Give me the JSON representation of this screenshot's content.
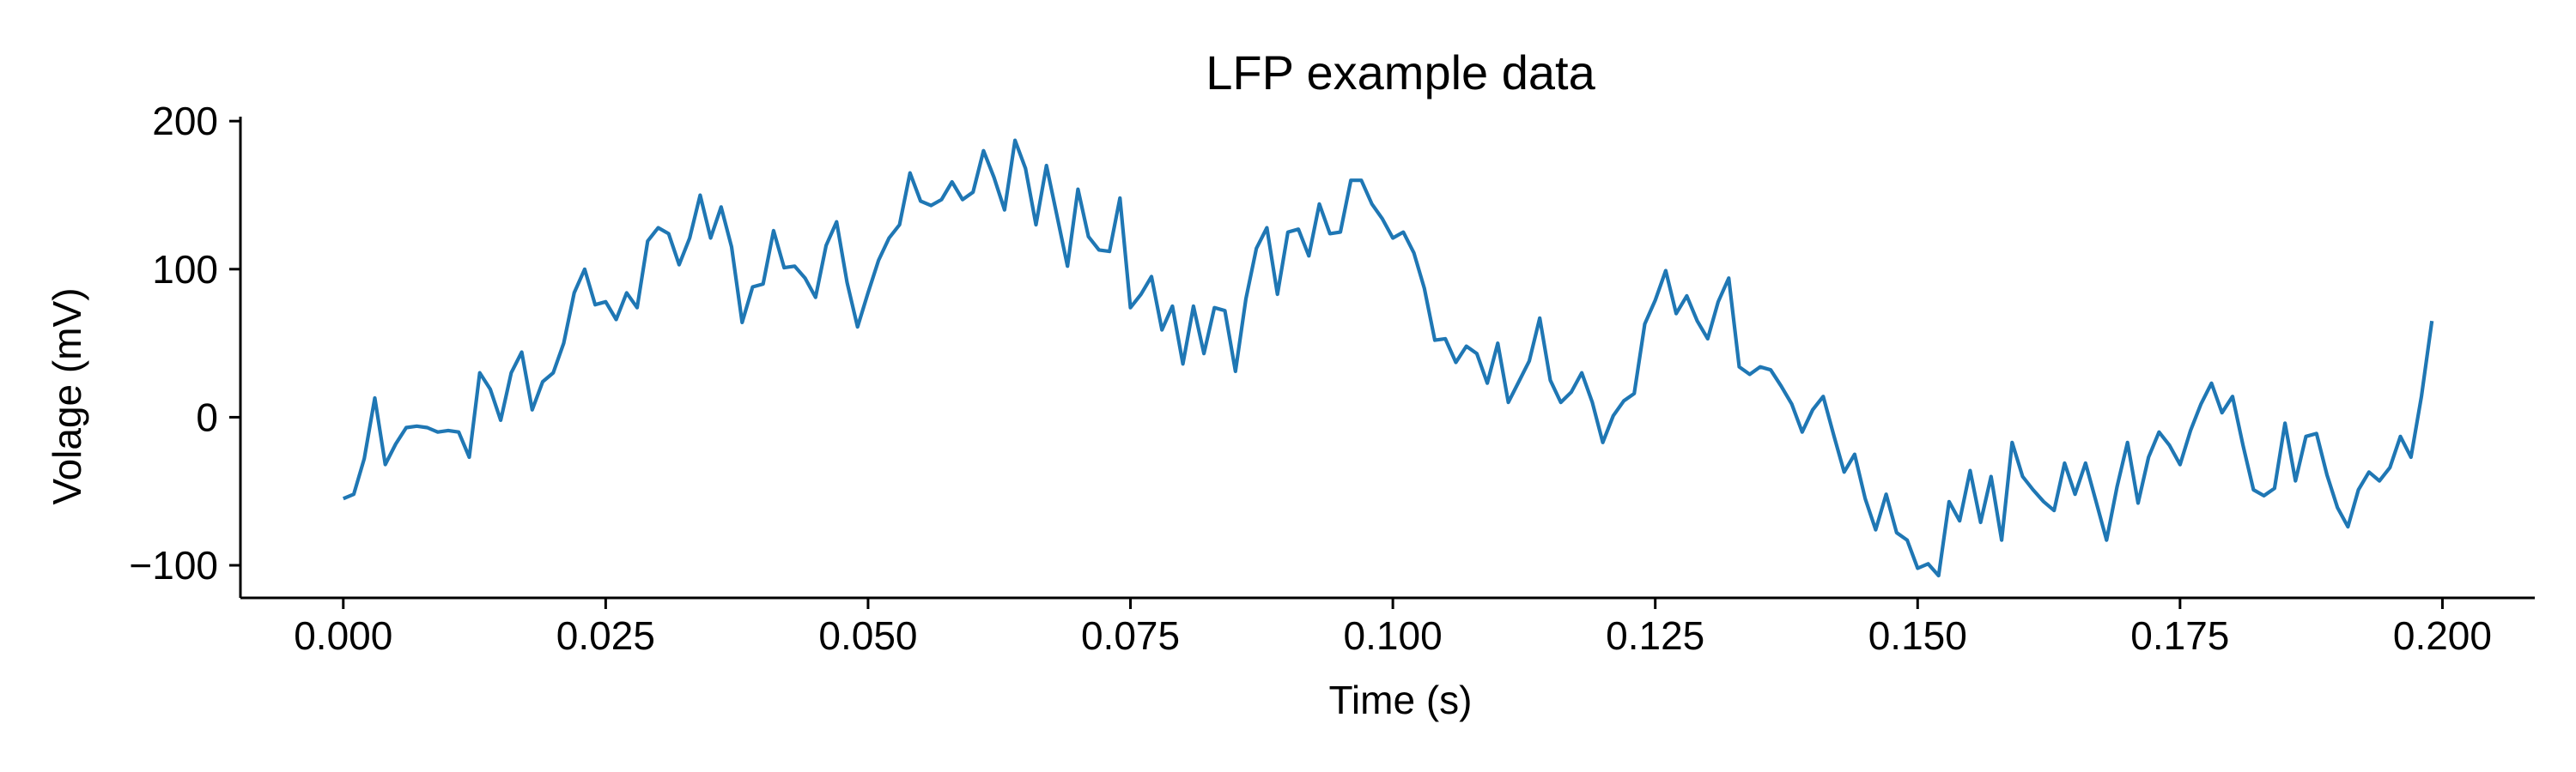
{
  "chart_data": {
    "type": "line",
    "title": "LFP example data",
    "xlabel": "Time (s)",
    "ylabel": "Volage (mV)",
    "xlim": [
      -0.0098,
      0.2088
    ],
    "ylim": [
      -122,
      203
    ],
    "xticks": [
      0.0,
      0.025,
      0.05,
      0.075,
      0.1,
      0.125,
      0.15,
      0.175,
      0.2
    ],
    "xtick_labels": [
      "0.000",
      "0.025",
      "0.050",
      "0.075",
      "0.100",
      "0.125",
      "0.150",
      "0.175",
      "0.200"
    ],
    "yticks": [
      -100,
      0,
      100,
      200
    ],
    "ytick_labels": [
      "−100",
      "0",
      "100",
      "200"
    ],
    "grid": false,
    "series": [
      {
        "color": "#1f77b4",
        "x_start": 0.0,
        "x_step": 0.001,
        "values": [
          -55,
          -52,
          -28,
          13,
          -32,
          -18,
          -7,
          -6,
          -7,
          -10,
          -9,
          -10,
          -27,
          30,
          19,
          -2,
          30,
          44,
          5,
          24,
          30,
          50,
          84,
          100,
          76,
          78,
          66,
          84,
          74,
          119,
          128,
          124,
          103,
          121,
          150,
          121,
          142,
          115,
          64,
          88,
          90,
          126,
          101,
          102,
          94,
          81,
          116,
          132,
          91,
          61,
          84,
          106,
          121,
          130,
          165,
          146,
          143,
          147,
          159,
          147,
          152,
          180,
          162,
          140,
          187,
          168,
          130,
          170,
          136,
          102,
          154,
          122,
          113,
          112,
          148,
          74,
          83,
          95,
          59,
          75,
          36,
          75,
          43,
          74,
          72,
          31,
          80,
          114,
          128,
          83,
          125,
          127,
          109,
          144,
          124,
          125,
          160,
          160,
          144,
          134,
          121,
          125,
          111,
          87,
          52,
          53,
          37,
          48,
          43,
          23,
          50,
          10,
          24,
          38,
          67,
          25,
          10,
          17,
          30,
          10,
          -17,
          1,
          11,
          16,
          63,
          79,
          99,
          70,
          82,
          65,
          53,
          78,
          94,
          34,
          29,
          34,
          32,
          21,
          9,
          -10,
          5,
          14,
          -12,
          -37,
          -25,
          -55,
          -76,
          -52,
          -78,
          -83,
          -102,
          -99,
          -107,
          -57,
          -70,
          -36,
          -71,
          -40,
          -83,
          -17,
          -40,
          -49,
          -57,
          -63,
          -31,
          -52,
          -31,
          -57,
          -83,
          -47,
          -17,
          -58,
          -27,
          -10,
          -19,
          -32,
          -9,
          9,
          23,
          3,
          14,
          -19,
          -49,
          -53,
          -48,
          -4,
          -43,
          -13,
          -11,
          -39,
          -61,
          -74,
          -49,
          -37,
          -43,
          -34,
          -13,
          -27,
          14,
          65
        ]
      }
    ]
  }
}
